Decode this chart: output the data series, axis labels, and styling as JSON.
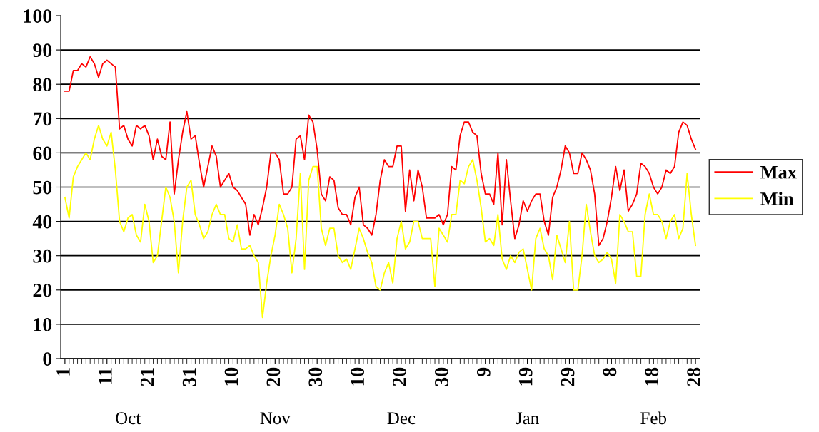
{
  "chart_data": {
    "type": "line",
    "categories": [
      "1",
      null,
      null,
      null,
      null,
      null,
      null,
      null,
      null,
      null,
      "11",
      null,
      null,
      null,
      null,
      null,
      null,
      null,
      null,
      null,
      "21",
      null,
      null,
      null,
      null,
      null,
      null,
      null,
      null,
      null,
      "31",
      null,
      null,
      null,
      null,
      null,
      null,
      null,
      null,
      null,
      "10",
      null,
      null,
      null,
      null,
      null,
      null,
      null,
      null,
      null,
      "20",
      null,
      null,
      null,
      null,
      null,
      null,
      null,
      null,
      null,
      "30",
      null,
      null,
      null,
      null,
      null,
      null,
      null,
      null,
      null,
      "10",
      null,
      null,
      null,
      null,
      null,
      null,
      null,
      null,
      null,
      "20",
      null,
      null,
      null,
      null,
      null,
      null,
      null,
      null,
      null,
      "30",
      null,
      null,
      null,
      null,
      null,
      null,
      null,
      null,
      null,
      "9",
      null,
      null,
      null,
      null,
      null,
      null,
      null,
      null,
      null,
      "19",
      null,
      null,
      null,
      null,
      null,
      null,
      null,
      null,
      null,
      "29",
      null,
      null,
      null,
      null,
      null,
      null,
      null,
      null,
      null,
      "8",
      null,
      null,
      null,
      null,
      null,
      null,
      null,
      null,
      null,
      "18",
      null,
      null,
      null,
      null,
      null,
      null,
      null,
      null,
      null,
      "28"
    ],
    "series": [
      {
        "name": "Max",
        "color": "#ff0000",
        "values": [
          78,
          78,
          84,
          84,
          86,
          85,
          88,
          86,
          82,
          86,
          87,
          86,
          85,
          67,
          68,
          64,
          62,
          68,
          67,
          68,
          65,
          58,
          64,
          59,
          58,
          69,
          48,
          58,
          66,
          72,
          64,
          65,
          57,
          50,
          56,
          62,
          59,
          50,
          52,
          54,
          50,
          49,
          47,
          45,
          36,
          42,
          39,
          44,
          50,
          60,
          60,
          58,
          48,
          48,
          50,
          64,
          65,
          58,
          71,
          69,
          61,
          48,
          46,
          53,
          52,
          44,
          42,
          42,
          39,
          47,
          50,
          39,
          38,
          36,
          42,
          52,
          58,
          56,
          56,
          62,
          62,
          43,
          55,
          46,
          55,
          50,
          41,
          41,
          41,
          42,
          39,
          42,
          56,
          55,
          65,
          69,
          69,
          66,
          65,
          54,
          48,
          48,
          45,
          60,
          39,
          58,
          46,
          35,
          39,
          46,
          43,
          46,
          48,
          48,
          40,
          36,
          47,
          50,
          55,
          62,
          60,
          54,
          54,
          60,
          58,
          55,
          48,
          33,
          35,
          40,
          47,
          56,
          49,
          55,
          43,
          45,
          48,
          57,
          56,
          54,
          50,
          48,
          50,
          55,
          54,
          56,
          66,
          69,
          68,
          64,
          61
        ]
      },
      {
        "name": "Min",
        "color": "#ffff00",
        "values": [
          47,
          41,
          53,
          56,
          58,
          60,
          58,
          64,
          68,
          64,
          62,
          66,
          55,
          40,
          37,
          41,
          42,
          36,
          34,
          45,
          40,
          28,
          30,
          40,
          50,
          47,
          40,
          25,
          40,
          50,
          52,
          42,
          39,
          35,
          37,
          42,
          45,
          42,
          42,
          35,
          34,
          39,
          32,
          32,
          33,
          30,
          28,
          12,
          22,
          30,
          36,
          45,
          42,
          38,
          25,
          35,
          54,
          26,
          52,
          56,
          56,
          38,
          33,
          38,
          38,
          30,
          28,
          29,
          26,
          32,
          38,
          35,
          31,
          28,
          21,
          20,
          25,
          28,
          22,
          35,
          40,
          32,
          34,
          40,
          40,
          35,
          35,
          35,
          21,
          38,
          36,
          34,
          42,
          42,
          52,
          51,
          56,
          58,
          52,
          44,
          34,
          35,
          33,
          42,
          29,
          26,
          30,
          28,
          31,
          32,
          26,
          20,
          35,
          38,
          32,
          30,
          23,
          36,
          32,
          28,
          40,
          20,
          20,
          30,
          45,
          37,
          30,
          28,
          29,
          31,
          29,
          22,
          42,
          40,
          37,
          37,
          24,
          24,
          42,
          48,
          42,
          42,
          40,
          35,
          40,
          42,
          35,
          38,
          54,
          42,
          33
        ]
      }
    ],
    "ylim": [
      0,
      100
    ],
    "yticks": [
      0,
      10,
      20,
      30,
      40,
      50,
      60,
      70,
      80,
      90,
      100
    ],
    "grid": "y",
    "legend": "right",
    "marker": "none",
    "line_style": "solid",
    "annotations": [
      "Oct",
      "Nov",
      "Dec",
      "Jan",
      "Feb"
    ]
  }
}
